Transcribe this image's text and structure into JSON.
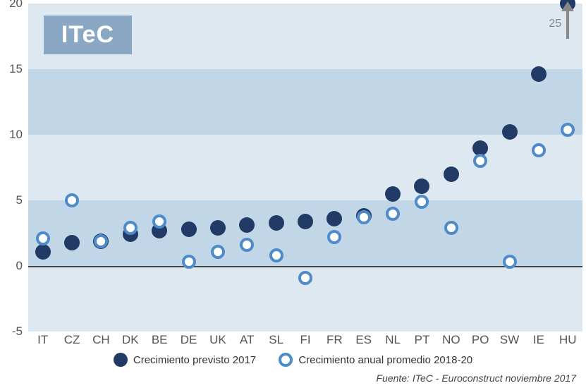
{
  "logo": "ITeC",
  "chart": {
    "type": "scatter",
    "background_color": "#dde8f1",
    "alt_band_color": "#c1d6e6",
    "zero_line_color": "#444444",
    "ylim": [
      -5,
      20
    ],
    "ytick_step": 5,
    "ytick_labels": [
      "-5",
      "0",
      "5",
      "10",
      "15",
      "20"
    ],
    "xlabel_fontsize": 17,
    "ylabel_fontsize": 17,
    "categories": [
      "IT",
      "CZ",
      "CH",
      "DK",
      "BE",
      "DE",
      "UK",
      "AT",
      "SL",
      "FI",
      "FR",
      "ES",
      "NL",
      "PT",
      "NO",
      "PO",
      "SW",
      "IE",
      "HU"
    ],
    "series1": {
      "name": "Crecimiento previsto 2017",
      "marker": "solid",
      "color": "#223a66",
      "size": 22,
      "values": [
        1.1,
        1.8,
        1.9,
        2.4,
        2.7,
        2.8,
        2.9,
        3.1,
        3.3,
        3.4,
        3.6,
        3.8,
        5.5,
        6.1,
        7.0,
        9.0,
        10.2,
        14.6,
        20.0
      ]
    },
    "series2": {
      "name": "Crecimiento anual promedio 2018-20",
      "marker": "open",
      "color": "#4f8bc9",
      "ring_width": 4,
      "size": 20,
      "values": [
        2.1,
        5.0,
        1.9,
        2.9,
        3.4,
        0.3,
        1.1,
        1.6,
        0.8,
        -0.9,
        2.2,
        3.7,
        4.0,
        4.9,
        2.9,
        8.0,
        0.3,
        8.8,
        10.4
      ]
    },
    "overflow_marker": {
      "category": "HU",
      "value_label": "25",
      "arrow_color": "#888888"
    }
  },
  "legend": {
    "items": [
      {
        "label": "Crecimiento previsto 2017"
      },
      {
        "label": "Crecimiento anual promedio 2018-20"
      }
    ]
  },
  "source": "Fuente: ITeC - Euroconstruct noviembre 2017"
}
